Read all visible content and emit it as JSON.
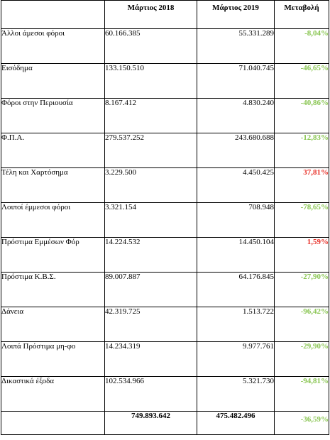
{
  "header": {
    "col1": "",
    "col2": "Μάρτιος 2018",
    "col3": "Μάρτιος 2019",
    "col4": "Μεταβολή"
  },
  "rows": [
    {
      "label": "Άλλοι άμεσοι φόροι",
      "prev": "60.166.385",
      "cur": "55.331.289",
      "change": "-8,04%"
    },
    {
      "label": "Εισόδημα",
      "prev": "133.150.510",
      "cur": "71.040.745",
      "change": "-46,65%"
    },
    {
      "label": "Φόροι στην Περιουσία",
      "prev": "8.167.412",
      "cur": "4.830.240",
      "change": "-40,86%"
    },
    {
      "label": "Φ.Π.Α.",
      "prev": "279.537.252",
      "cur": "243.680.688",
      "change": "-12,83%"
    },
    {
      "label": "Τέλη και Χαρτόσημα",
      "prev": "3.229.500",
      "cur": "4.450.425",
      "change": "37,81%"
    },
    {
      "label": "Λοιποί έμμεσοι φόροι",
      "prev": "3.321.154",
      "cur": "708.948",
      "change": "-78,65%"
    },
    {
      "label": "Πρόστιμα Εμμέσων Φόρ",
      "prev": "14.224.532",
      "cur": "14.450.104",
      "change": "1,59%"
    },
    {
      "label": "Πρόστιμα Κ.Β.Σ.",
      "prev": "89.007.887",
      "cur": "64.176.845",
      "change": "-27,90%"
    },
    {
      "label": "Δάνεια",
      "prev": "42.319.725",
      "cur": "1.513.722",
      "change": "-96,42%"
    },
    {
      "label": "Λοιπά Πρόστιμα μη-φο",
      "prev": "14.234.319",
      "cur": "9.977.761",
      "change": "-29,90%"
    },
    {
      "label": "Δικαστικά έξοδα",
      "prev": "102.534.966",
      "cur": "5.321.730",
      "change": "-94,81%"
    }
  ],
  "total": {
    "label": "",
    "prev": "749.893.642",
    "cur": "475.482.496",
    "change": "-36,59%"
  },
  "colors": {
    "negative": "#8ac653",
    "positive": "#e8332b",
    "border": "#000000"
  }
}
